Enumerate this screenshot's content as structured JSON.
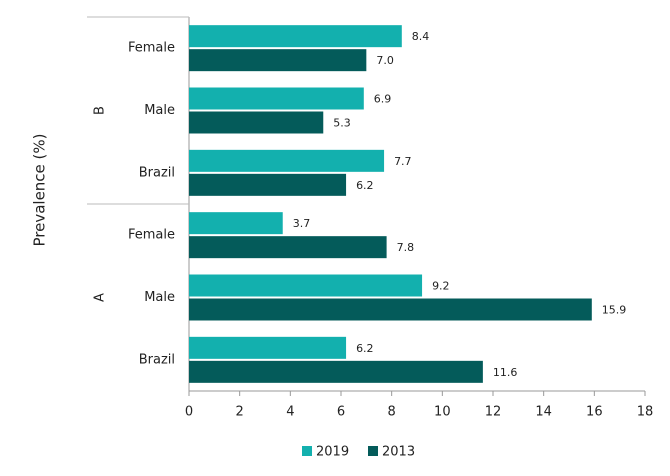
{
  "chart_data": {
    "type": "bar",
    "orientation": "horizontal",
    "y_label": "Prevalence (%)",
    "groups": [
      {
        "name": "B",
        "categories": [
          "Female",
          "Male",
          "Brazil"
        ]
      },
      {
        "name": "A",
        "categories": [
          "Female",
          "Male",
          "Brazil"
        ]
      }
    ],
    "series": [
      {
        "name": "2019",
        "color": "#13b0ae",
        "values": [
          8.4,
          6.9,
          7.7,
          3.7,
          9.2,
          6.2
        ],
        "value_labels": [
          "8.4",
          "6.9",
          "7.7",
          "3.7",
          "9.2",
          "6.2"
        ]
      },
      {
        "name": "2013",
        "color": "#045b5a",
        "values": [
          7.0,
          5.3,
          6.2,
          7.8,
          15.9,
          11.6
        ],
        "value_labels": [
          "7.0",
          "5.3",
          "6.2",
          "7.8",
          "15.9",
          "11.6"
        ]
      }
    ],
    "xlim": [
      0,
      18
    ],
    "xticks": [
      0,
      2,
      4,
      6,
      8,
      10,
      12,
      14,
      16,
      18
    ]
  }
}
